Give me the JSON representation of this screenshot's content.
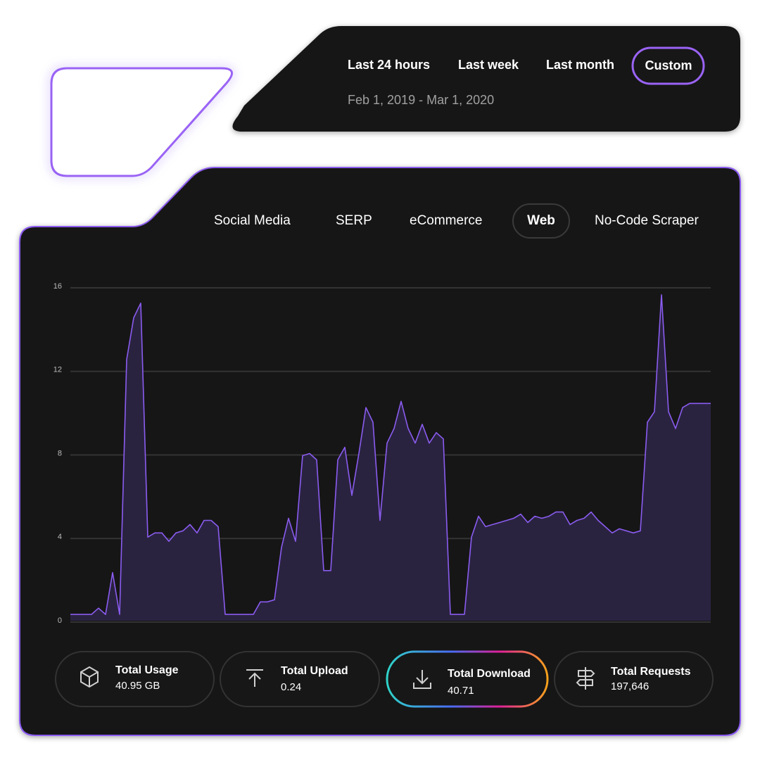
{
  "time_filters": [
    "Last 24 hours",
    "Last week",
    "Last month",
    "Custom"
  ],
  "date_range": "Feb 1, 2019 - Mar 1, 2020",
  "tabs": [
    "Social Media",
    "SERP",
    "eCommerce",
    "Web",
    "No-Code Scraper"
  ],
  "chart_data": {
    "type": "area",
    "color": "#8a5cf0",
    "fill": "#2a2340",
    "ylim": [
      0,
      16
    ],
    "yticks": [
      0,
      4,
      8,
      12,
      16
    ],
    "grid": true,
    "values": [
      0.3,
      0.3,
      0.3,
      0.3,
      0.6,
      0.3,
      2.3,
      0.3,
      12.5,
      14.5,
      15.2,
      4,
      4.2,
      4.2,
      3.8,
      4.2,
      4.3,
      4.6,
      4.2,
      4.8,
      4.8,
      4.5,
      0.3,
      0.3,
      0.3,
      0.3,
      0.3,
      0.9,
      0.9,
      1,
      3.5,
      4.9,
      3.8,
      7.9,
      8,
      7.7,
      2.4,
      2.4,
      7.7,
      8.3,
      6,
      8,
      10.2,
      9.5,
      4.8,
      8.5,
      9.2,
      10.5,
      9.2,
      8.5,
      9.4,
      8.5,
      9,
      8.7,
      0.3,
      0.3,
      0.3,
      4,
      5,
      4.5,
      4.6,
      4.7,
      4.8,
      4.9,
      5.1,
      4.7,
      5,
      4.9,
      5,
      5.2,
      5.2,
      4.6,
      4.8,
      4.9,
      5.2,
      4.8,
      4.5,
      4.2,
      4.4,
      4.3,
      4.2,
      4.3,
      9.5,
      10,
      15.6,
      10,
      9.2,
      10.2,
      10.4,
      10.4,
      10.4,
      10.4
    ]
  },
  "stats": [
    {
      "label": "Total Usage",
      "value": "40.95 GB"
    },
    {
      "label": "Total Upload",
      "value": "0.24"
    },
    {
      "label": "Total Download",
      "value": "40.71"
    },
    {
      "label": "Total Requests",
      "value": "197,646"
    }
  ]
}
